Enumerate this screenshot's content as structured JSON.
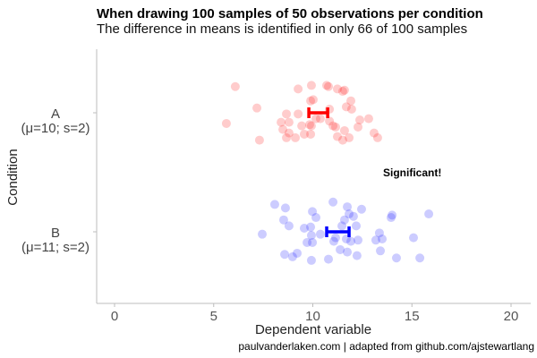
{
  "chart_data": {
    "type": "scatter",
    "title": "When drawing 100 samples of 50 observations per condition",
    "subtitle": "The difference in means is identified in only 66 of 100 samples",
    "xlabel": "Dependent variable",
    "ylabel": "Condition",
    "xlim": [
      -1,
      21
    ],
    "xticks": [
      0,
      5,
      10,
      15,
      20
    ],
    "xtick_labels": [
      "0",
      "5",
      "10",
      "15",
      "20"
    ],
    "grid": false,
    "caption": "paulvanderlaken.com | adapted from github.com/ajstewartlang",
    "annotation": "Significant!",
    "series": [
      {
        "name": "A",
        "label_line1": "A",
        "label_line2": "(μ=10; s=2)",
        "color": "#ff0000",
        "ci": [
          9.8,
          10.75
        ],
        "points_x": [
          6.09,
          7.18,
          5.64,
          7.31,
          9.26,
          9.93,
          10.7,
          10.79,
          11.24,
          11.51,
          11.6,
          9.89,
          10.02,
          11.92,
          11.69,
          11.96,
          10.84,
          8.67,
          9.26,
          8.4,
          8.8,
          8.49,
          8.8,
          8.67,
          9.12,
          9.44,
          9.84,
          9.93,
          9.57,
          9.89,
          10.16,
          10.38,
          10.84,
          11.02,
          11.15,
          11.6,
          11.24,
          11.51,
          11.83,
          12.28,
          12.37,
          12.82,
          13.09,
          13.27
        ],
        "points_jitter": [
          -0.22,
          -0.04,
          0.09,
          0.23,
          -0.2,
          -0.23,
          -0.23,
          -0.22,
          -0.2,
          -0.18,
          -0.19,
          -0.1,
          -0.11,
          -0.1,
          -0.05,
          -0.03,
          -0.03,
          0.01,
          0.01,
          0.08,
          0.08,
          0.14,
          0.17,
          0.21,
          0.21,
          0.11,
          0.1,
          0.11,
          0.18,
          0.18,
          0.05,
          0.05,
          0.07,
          0.11,
          0.12,
          0.15,
          0.2,
          0.23,
          0.21,
          0.12,
          0.06,
          0.05,
          0.17,
          0.21
        ]
      },
      {
        "name": "B",
        "label_line1": "B",
        "label_line2": "(μ=11; s=2)",
        "color": "#0000ff",
        "ci": [
          10.7,
          11.83
        ],
        "points_x": [
          8.08,
          8.62,
          11.02,
          11.74,
          12.46,
          9.98,
          10.16,
          11.83,
          12.05,
          8.53,
          8.8,
          11.6,
          11.47,
          12.19,
          9.57,
          9.89,
          7.45,
          9.93,
          10.38,
          11.15,
          11.06,
          11.69,
          11.92,
          12.28,
          9.71,
          9.98,
          13.18,
          13.36,
          13.5,
          13.95,
          14.0,
          15.08,
          15.85,
          8.58,
          8.98,
          9.21,
          9.93,
          10.79,
          11.38,
          11.74,
          12.23,
          13.41,
          14.22,
          15.4
        ],
        "points_jitter": [
          -0.23,
          -0.2,
          -0.25,
          -0.21,
          -0.19,
          -0.17,
          -0.12,
          -0.15,
          -0.13,
          -0.1,
          -0.05,
          -0.1,
          -0.05,
          -0.05,
          -0.03,
          -0.04,
          0.02,
          0.03,
          0.02,
          0.05,
          0.08,
          0.06,
          0.08,
          0.07,
          0.09,
          0.09,
          0.07,
          0.01,
          0.06,
          -0.12,
          -0.14,
          0.05,
          -0.15,
          0.19,
          0.21,
          0.18,
          0.24,
          0.23,
          0.15,
          0.17,
          0.2,
          0.16,
          0.22,
          0.22
        ]
      }
    ]
  }
}
